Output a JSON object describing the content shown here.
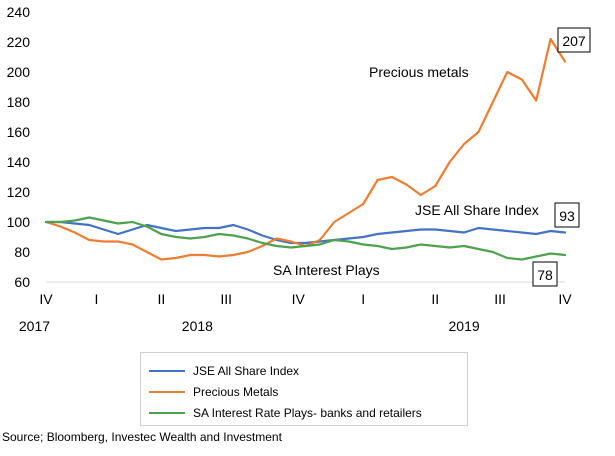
{
  "chart_data": {
    "type": "line",
    "x": [
      0,
      1,
      2,
      3,
      4,
      5,
      6,
      7,
      8,
      9,
      10,
      11,
      12,
      13,
      14,
      15,
      16,
      17,
      18,
      19,
      20,
      21,
      22,
      23,
      24,
      25,
      26,
      27,
      28,
      29,
      30,
      31,
      32,
      33,
      34,
      35,
      36
    ],
    "ylim": [
      60,
      240
    ],
    "yticks": [
      60,
      80,
      100,
      120,
      140,
      160,
      180,
      200,
      220,
      240
    ],
    "grid": false,
    "quarter_ticks": [
      {
        "label": "IV",
        "x": 0
      },
      {
        "label": "I",
        "x": 3.5
      },
      {
        "label": "II",
        "x": 8
      },
      {
        "label": "III",
        "x": 12.5
      },
      {
        "label": "IV",
        "x": 17.5
      },
      {
        "label": "I",
        "x": 22
      },
      {
        "label": "II",
        "x": 27
      },
      {
        "label": "III",
        "x": 31.5
      },
      {
        "label": "IV",
        "x": 36
      }
    ],
    "year_labels": [
      {
        "label": "2017",
        "x": -0.8
      },
      {
        "label": "2018",
        "x": 10.5
      },
      {
        "label": "2019",
        "x": 29
      }
    ],
    "series": [
      {
        "name": "JSE All Share Index",
        "color": "#4472C4",
        "values": [
          100,
          100,
          99,
          98,
          95,
          92,
          95,
          98,
          96,
          94,
          95,
          96,
          96,
          98,
          95,
          91,
          88,
          86,
          86,
          87,
          88,
          89,
          90,
          92,
          93,
          94,
          95,
          95,
          94,
          93,
          96,
          95,
          94,
          93,
          92,
          94,
          93
        ]
      },
      {
        "name": "Precious Metals",
        "color": "#ED7D31",
        "values": [
          100,
          97,
          93,
          88,
          87,
          87,
          85,
          80,
          75,
          76,
          78,
          78,
          77,
          78,
          80,
          84,
          89,
          87,
          84,
          88,
          100,
          106,
          112,
          128,
          130,
          125,
          118,
          124,
          140,
          152,
          160,
          180,
          200,
          195,
          181,
          222,
          207
        ]
      },
      {
        "name": "SA Interest Rate Plays- banks  and retailers",
        "color": "#4EA24E",
        "values": [
          100,
          100,
          101,
          103,
          101,
          99,
          100,
          97,
          92,
          90,
          89,
          90,
          92,
          91,
          89,
          86,
          84,
          83,
          84,
          85,
          88,
          87,
          85,
          84,
          82,
          83,
          85,
          84,
          83,
          84,
          82,
          80,
          76,
          75,
          77,
          79,
          78
        ]
      }
    ],
    "annotations": {
      "precious": "Precious metals",
      "jse": "JSE All Share Index",
      "sa": "SA Interest Plays",
      "end_values": [
        "207",
        "93",
        "78"
      ]
    }
  },
  "source_text": "Source; Bloomberg, Investec Wealth and Investment"
}
